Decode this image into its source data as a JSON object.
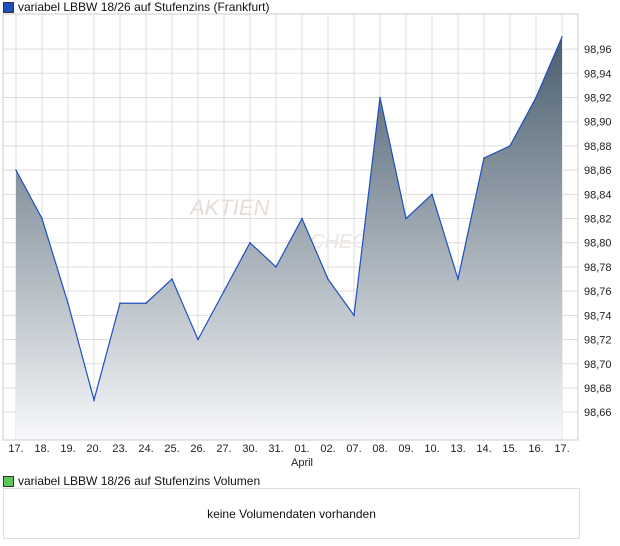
{
  "chart_data": {
    "type": "area",
    "title": "variabel LBBW 18/26 auf Stufenzins (Frankfurt)",
    "series_color": "#1f4fbf",
    "x": [
      "17.",
      "18.",
      "19.",
      "20.",
      "23.",
      "24.",
      "25.",
      "26.",
      "27.",
      "30.",
      "31.",
      "01.",
      "02.",
      "07.",
      "08.",
      "09.",
      "10.",
      "13.",
      "14.",
      "15.",
      "16.",
      "17."
    ],
    "x_sublabel": {
      "index": 11,
      "text": "April"
    },
    "values": [
      98.86,
      98.82,
      98.75,
      98.67,
      98.75,
      98.75,
      98.77,
      98.72,
      98.76,
      98.8,
      98.78,
      98.82,
      98.77,
      98.74,
      98.92,
      98.82,
      98.84,
      98.77,
      98.87,
      98.88,
      98.92,
      98.97
    ],
    "yticks": [
      "98,66",
      "98,68",
      "98,70",
      "98,72",
      "98,74",
      "98,76",
      "98,78",
      "98,80",
      "98,82",
      "98,84",
      "98,86",
      "98,88",
      "98,90",
      "98,92",
      "98,94",
      "98,96"
    ],
    "ylim": [
      98.637,
      98.989
    ],
    "grid": true,
    "legend": "top-left"
  },
  "volume": {
    "legend": "variabel LBBW 18/26 auf Stufenzins Volumen",
    "legend_color": "#5cc85c",
    "message": "keine Volumendaten vorhanden"
  }
}
